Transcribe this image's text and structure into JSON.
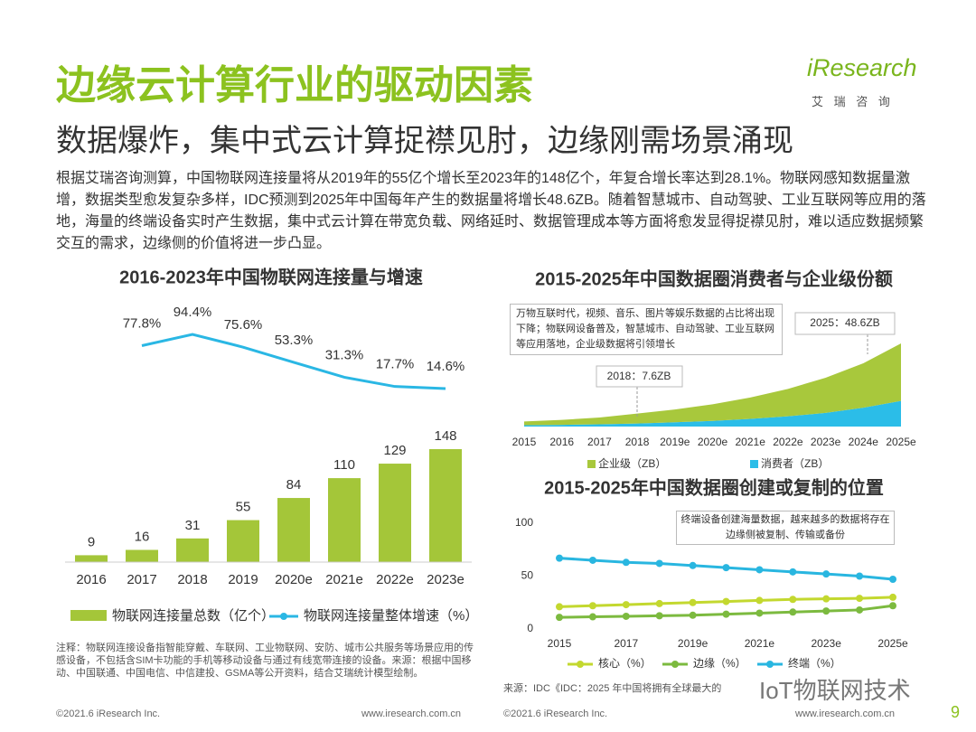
{
  "header": {
    "title": "边缘云计算行业的驱动因素",
    "subtitle": "数据爆炸，集中式云计算捉襟见肘，边缘刚需场景涌现",
    "logo": "iResearch",
    "logo_sub": "艾 瑞 咨 询"
  },
  "body": "根据艾瑞咨询测算，中国物联网连接量将从2019年的55亿个增长至2023年的148亿个，年复合增长率达到28.1%。物联网感知数据量激增，数据类型愈发复杂多样，IDC预测到2025年中国每年产生的数据量将增长48.6ZB。随着智慧城市、自动驾驶、工业互联网等应用的落地，海量的终端设备实时产生数据，集中式云计算在带宽负载、网络延时、数据管理成本等方面将愈发显得捉襟见肘，难以适应数据频繁交互的需求，边缘侧的价值将进一步凸显。",
  "chart_data": [
    {
      "type": "bar_line",
      "title": "2016-2023年中国物联网连接量与增速",
      "categories": [
        "2016",
        "2017",
        "2018",
        "2019",
        "2020e",
        "2021e",
        "2022e",
        "2023e"
      ],
      "series": [
        {
          "name": "物联网连接量总数（亿个）",
          "type": "bar",
          "color": "#a4c639",
          "values": [
            9,
            16,
            31,
            55,
            84,
            110,
            129,
            148
          ]
        },
        {
          "name": "物联网连接量整体增速（%）",
          "type": "line",
          "axis": "y2",
          "color": "#2ab7e4",
          "values": [
            null,
            77.8,
            94.4,
            75.6,
            53.3,
            31.3,
            17.7,
            14.6
          ],
          "value_labels": [
            null,
            "77.8%",
            "94.4%",
            "75.6%",
            "53.3%",
            "31.3%",
            "17.7%",
            "14.6%"
          ]
        }
      ]
    },
    {
      "type": "stacked_area",
      "title": "2015-2025年中国数据圈消费者与企业级份额",
      "categories": [
        "2015",
        "2016",
        "2017",
        "2018",
        "2019e",
        "2020e",
        "2021e",
        "2022e",
        "2023e",
        "2024e",
        "2025e"
      ],
      "series": [
        {
          "name": "企业级（ZB）",
          "color": "#a8c83c",
          "values": [
            2.2,
            2.9,
            4.0,
            5.8,
            7.5,
            9.7,
            12.5,
            16,
            20.5,
            26,
            33.6
          ]
        },
        {
          "name": "消费者（ZB）",
          "color": "#2bbde8",
          "values": [
            0.8,
            1.0,
            1.3,
            1.8,
            2.5,
            3.3,
            4.5,
            6,
            8,
            11,
            15
          ]
        }
      ],
      "annotation": "万物互联时代，视频、音乐、图片等娱乐数据的占比将出现下降；物联网设备普及，智慧城市、自动驾驶、工业互联网等应用落地，企业级数据将引领增长",
      "label_2018": "2018：7.6ZB",
      "label_2025": "2025：48.6ZB"
    },
    {
      "type": "line",
      "title": "2015-2025年中国数据圈创建或复制的位置",
      "categories": [
        "2015",
        null,
        "2017",
        null,
        "2019e",
        null,
        "2021e",
        null,
        "2023e",
        null,
        "2025e"
      ],
      "ylim": [
        0,
        100
      ],
      "yticks": [
        0,
        50,
        100
      ],
      "series": [
        {
          "name": "核心（%）",
          "color": "#c3d82f",
          "values": [
            21,
            22,
            23,
            24,
            25,
            26,
            27,
            28,
            28.5,
            29,
            30
          ]
        },
        {
          "name": "边缘（%）",
          "color": "#7cba3f",
          "values": [
            11,
            11.5,
            12,
            12.5,
            13,
            14,
            15,
            16,
            17,
            18,
            22
          ]
        },
        {
          "name": "终端（%）",
          "color": "#29b6e0",
          "values": [
            67,
            65,
            63,
            62,
            60,
            58,
            56,
            54,
            52,
            50,
            47
          ]
        }
      ],
      "annotation": "终端设备创建海量数据，越来越多的数据将存在边缘侧被复制、传输或备份"
    }
  ],
  "notes": "注释：物联网连接设备指智能穿戴、车联网、工业物联网、安防、城市公共服务等场景应用的传感设备，不包括含SIM卡功能的手机等移动设备与通过有线宽带连接的设备。来源：根据中国移动、中国联通、中国电信、中信建投、GSMA等公开资料，结合艾瑞统计模型绘制。",
  "source_right": "来源：IDC《IDC：2025 年中国将拥有全球最大的",
  "watermark": "IoT物联网技术",
  "footer": {
    "copyright_left": "©2021.6 iResearch Inc.",
    "url_left": "www.iresearch.com.cn",
    "copyright_right": "©2021.6 iResearch Inc.",
    "url_right": "www.iresearch.com.cn",
    "page": 9
  }
}
